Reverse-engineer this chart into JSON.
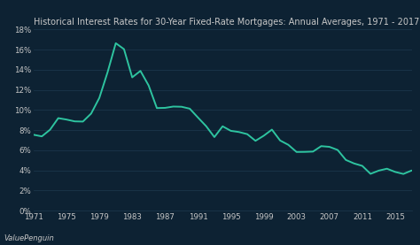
{
  "title": "Historical Interest Rates for 30-Year Fixed-Rate Mortgages: Annual Averages, 1971 - 2017",
  "background_color": "#0d2233",
  "line_color": "#2ec4a0",
  "text_color": "#c8c8c8",
  "watermark": "ValuePenguin",
  "years": [
    1971,
    1972,
    1973,
    1974,
    1975,
    1976,
    1977,
    1978,
    1979,
    1980,
    1981,
    1982,
    1983,
    1984,
    1985,
    1986,
    1987,
    1988,
    1989,
    1990,
    1991,
    1992,
    1993,
    1994,
    1995,
    1996,
    1997,
    1998,
    1999,
    2000,
    2001,
    2002,
    2003,
    2004,
    2005,
    2006,
    2007,
    2008,
    2009,
    2010,
    2011,
    2012,
    2013,
    2014,
    2015,
    2016,
    2017
  ],
  "rates": [
    7.54,
    7.38,
    8.04,
    9.19,
    9.05,
    8.87,
    8.85,
    9.64,
    11.2,
    13.74,
    16.63,
    16.04,
    13.24,
    13.88,
    12.43,
    10.19,
    10.21,
    10.34,
    10.32,
    10.13,
    9.25,
    8.39,
    7.31,
    8.38,
    7.93,
    7.81,
    7.6,
    6.94,
    7.44,
    8.05,
    6.97,
    6.54,
    5.83,
    5.84,
    5.87,
    6.41,
    6.34,
    6.03,
    5.04,
    4.69,
    4.45,
    3.66,
    3.98,
    4.17,
    3.85,
    3.65,
    3.99
  ],
  "xlim": [
    1971,
    2017
  ],
  "ylim": [
    0,
    18
  ],
  "yticks": [
    0,
    2,
    4,
    6,
    8,
    10,
    12,
    14,
    16,
    18
  ],
  "xticks": [
    1971,
    1975,
    1979,
    1983,
    1987,
    1991,
    1995,
    1999,
    2003,
    2007,
    2011,
    2015
  ],
  "title_fontsize": 7.0,
  "tick_fontsize": 6.2,
  "watermark_fontsize": 6.0,
  "grid_color": "#1e3a4f",
  "line_width": 1.4
}
